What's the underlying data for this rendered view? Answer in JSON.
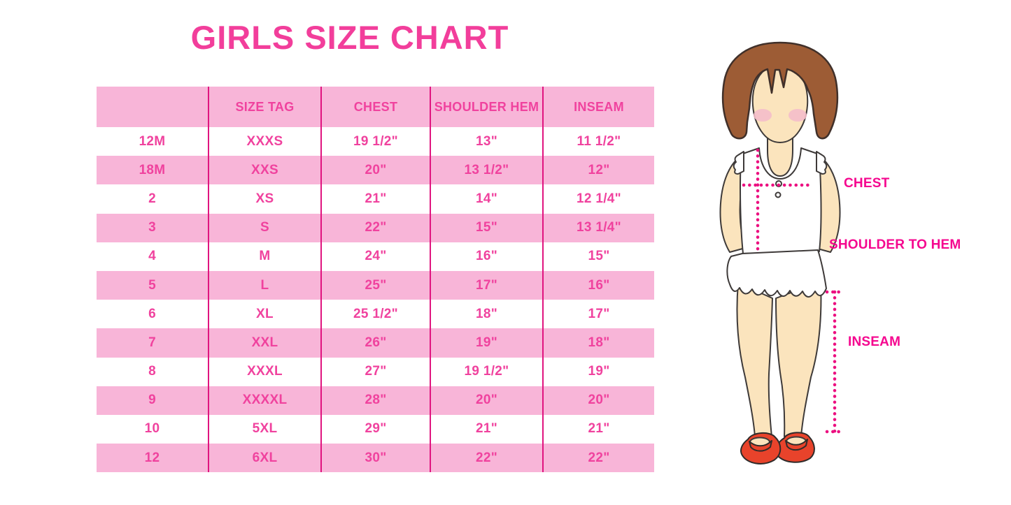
{
  "chart_data": {
    "type": "table",
    "title": "GIRLS SIZE CHART",
    "columns": [
      "",
      "SIZE TAG",
      "CHEST",
      "SHOULDER HEM",
      "INSEAM"
    ],
    "rows": [
      [
        "12M",
        "XXXS",
        "19 1/2\"",
        "13\"",
        "11 1/2\""
      ],
      [
        "18M",
        "XXS",
        "20\"",
        "13 1/2\"",
        "12\""
      ],
      [
        "2",
        "XS",
        "21\"",
        "14\"",
        "12 1/4\""
      ],
      [
        "3",
        "S",
        "22\"",
        "15\"",
        "13 1/4\""
      ],
      [
        "4",
        "M",
        "24\"",
        "16\"",
        "15\""
      ],
      [
        "5",
        "L",
        "25\"",
        "17\"",
        "16\""
      ],
      [
        "6",
        "XL",
        "25 1/2\"",
        "18\"",
        "17\""
      ],
      [
        "7",
        "XXL",
        "26\"",
        "19\"",
        "18\""
      ],
      [
        "8",
        "XXXL",
        "27\"",
        "19 1/2\"",
        "19\""
      ],
      [
        "9",
        "XXXXL",
        "28\"",
        "20\"",
        "20\""
      ],
      [
        "10",
        "5XL",
        "29\"",
        "21\"",
        "21\""
      ],
      [
        "12",
        "6XL",
        "30\"",
        "22\"",
        "22\""
      ]
    ],
    "layout_hints": {
      "header_background": "pink",
      "row_striping": "white/pink alternating starting white",
      "column_dividers": "magenta vertical lines, no horizontal borders"
    }
  },
  "diagram": {
    "description": "cartoon girl figure with measurement guides",
    "labels": {
      "chest": "CHEST",
      "shoulder_to_hem": "SHOULDER TO HEM",
      "inseam": "INSEAM"
    }
  },
  "colors": {
    "title_pink": "#f23e9b",
    "text_pink": "#f0429e",
    "row_pink": "#f8b5d8",
    "divider_magenta": "#e0147f",
    "label_magenta": "#f5078f",
    "dot_pink": "#ec1080",
    "hair_brown": "#9d5c35",
    "skin": "#fbe4bd",
    "blush": "#f4bdca",
    "shoe_red": "#e8432b",
    "outline_dark": "#3e3a39"
  }
}
